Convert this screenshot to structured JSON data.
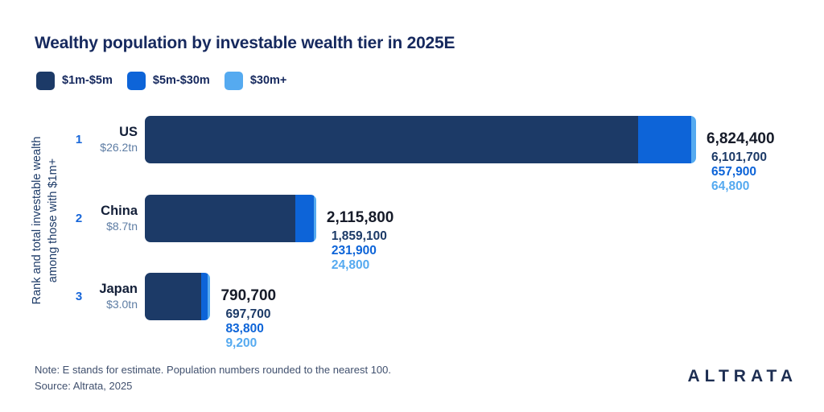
{
  "title": "Wealthy population by investable wealth tier in 2025E",
  "y_axis_label": {
    "line1": "Rank and total investable wealth",
    "line2": "among those with $1m+"
  },
  "colors": {
    "tier1_dark_navy": "#1c3a67",
    "tier2_medium_blue": "#0d64d8",
    "tier3_light_blue": "#55aaf0",
    "title_navy": "#16295e",
    "rank_blue": "#1766d9",
    "wealth_gray_blue": "#5e7da4",
    "total_near_black": "#161b29",
    "note_slate": "#40506e",
    "background": "#ffffff"
  },
  "chart_data": {
    "type": "bar",
    "orientation": "horizontal",
    "stacked": true,
    "title": "Wealthy population by investable wealth tier in 2025E",
    "legend_position": "top",
    "grid": false,
    "xlim": [
      0,
      6824400
    ],
    "categories": [
      "US",
      "China",
      "Japan"
    ],
    "ranks": [
      "1",
      "2",
      "3"
    ],
    "category_wealth": [
      "$26.2tn",
      "$8.7tn",
      "$3.0tn"
    ],
    "totals": [
      6824400,
      2115800,
      790700
    ],
    "series": [
      {
        "name": "$1m-$5m",
        "color": "#1c3a67",
        "values": [
          6101700,
          1859100,
          697700
        ]
      },
      {
        "name": "$5m-$30m",
        "color": "#0d64d8",
        "values": [
          657900,
          231900,
          83800
        ]
      },
      {
        "name": "$30m+",
        "color": "#55aaf0",
        "values": [
          64800,
          24800,
          9200
        ]
      }
    ]
  },
  "footer": {
    "note": "Note: E stands for estimate. Population numbers rounded to the nearest 100.",
    "source": "Source: Altrata, 2025",
    "logo": "ALTRATA"
  }
}
